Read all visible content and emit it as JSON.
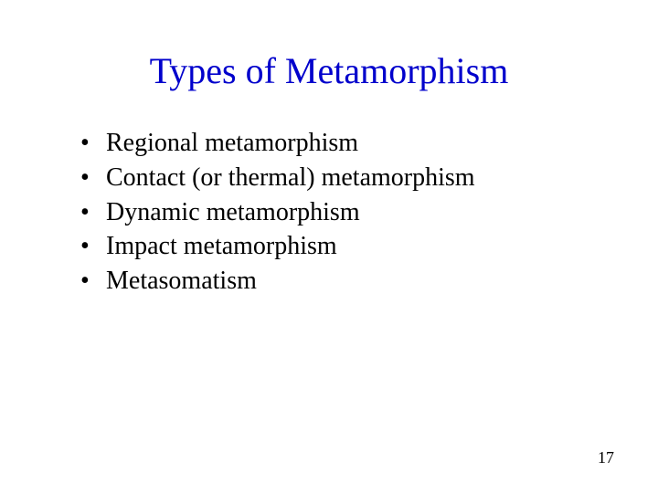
{
  "slide": {
    "title": "Types of Metamorphism",
    "title_color": "#0000cc",
    "title_fontsize": 40,
    "body_color": "#000000",
    "body_fontsize": 28,
    "bullets": [
      "Regional metamorphism",
      "Contact (or thermal) metamorphism",
      "Dynamic metamorphism",
      "Impact metamorphism",
      "Metasomatism"
    ],
    "page_number": "17",
    "page_number_color": "#000000",
    "page_number_fontsize": 18,
    "background_color": "#ffffff",
    "line_height": 1.28
  }
}
